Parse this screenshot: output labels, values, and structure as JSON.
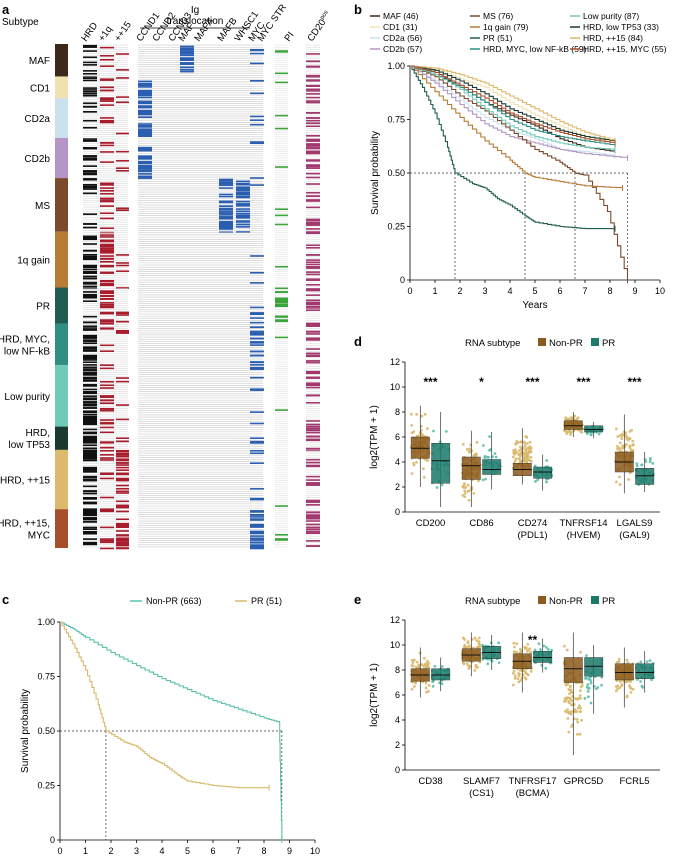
{
  "panel_labels": [
    "a",
    "b",
    "c",
    "d",
    "e"
  ],
  "colors": {
    "MAF": "#3d2718",
    "CD1": "#f3e2b1",
    "CD2a": "#c9e2ee",
    "CD2b": "#b595c7",
    "MS": "#7a4a2a",
    "1q gain": "#b97c35",
    "PR": "#1e5d50",
    "HRD, MYC, low NF-kB": "#2f8f83",
    "Low purity": "#6fcab8",
    "HRD, low TP53": "#1a3a30",
    "HRD, ++15": "#dcb96b",
    "HRD, ++15, MYC": "#a74e2a",
    "nonpr_dark": "#8b5a1c",
    "nonpr_light": "#d9b86a",
    "pr_dark": "#1b7a6a",
    "pr_light": "#5cc0ad",
    "ig": "#2a5eb0",
    "hrd": "#111111",
    "chr": "#a81c2c",
    "pi": "#3aa53a",
    "cd20": "#a3386f"
  },
  "panel_a": {
    "subtype_label": "Subtype",
    "column_labels": [
      "HRD",
      "+1q",
      "++15",
      "CCND1",
      "CCND2",
      "CCND3",
      "MAF",
      "MAFA",
      "MAFB",
      "WHSC1",
      "MYC",
      "MYC STR",
      "PI",
      "CD20"
    ],
    "cd20_sup": "pos",
    "ig_header": [
      "Ig",
      "translocation"
    ],
    "subtypes": [
      "MAF",
      "CD1",
      "CD2a",
      "CD2b",
      "MS",
      "1q gain",
      "PR",
      "HRD, MYC, low NF-kB",
      "Low purity",
      "HRD, low TP53",
      "HRD, ++15",
      "HRD, ++15, MYC"
    ],
    "subtype_display": [
      [
        "MAF"
      ],
      [
        "CD1"
      ],
      [
        "CD2a"
      ],
      [
        "CD2b"
      ],
      [
        "MS"
      ],
      [
        "1q gain"
      ],
      [
        "PR"
      ],
      [
        "HRD, MYC,",
        "low NF-kB"
      ],
      [
        "Low purity"
      ],
      [
        "HRD,",
        "low TP53"
      ],
      [
        "HRD, ++15"
      ],
      [
        "HRD, ++15,",
        "MYC"
      ]
    ],
    "subtype_sizes": [
      46,
      31,
      56,
      57,
      76,
      79,
      51,
      59,
      87,
      33,
      84,
      55
    ]
  },
  "chart_data": [
    {
      "panel": "b",
      "type": "line",
      "title": "",
      "xlabel": "Years",
      "ylabel": "Survival probability",
      "xlim": [
        0,
        10
      ],
      "ylim": [
        0,
        1
      ],
      "xticks": [
        0,
        1,
        2,
        3,
        4,
        5,
        6,
        7,
        8,
        9,
        10
      ],
      "yticks": [
        0,
        0.25,
        0.5,
        0.75,
        1
      ],
      "ytick_labels": [
        "0",
        "0.25",
        "0.50",
        "0.75",
        "1.00"
      ],
      "median_lines": [
        1.8,
        4.6,
        6.6,
        8.7
      ],
      "series": [
        {
          "name": "MAF (46)",
          "key": "MAF",
          "x": [
            0,
            1,
            2,
            3,
            4,
            5,
            6,
            7,
            8.2
          ],
          "y": [
            1,
            0.96,
            0.9,
            0.83,
            0.77,
            0.72,
            0.66,
            0.62,
            0.6
          ]
        },
        {
          "name": "CD1 (31)",
          "key": "CD1",
          "x": [
            0,
            1,
            2,
            3,
            4,
            5,
            6,
            7,
            8.2
          ],
          "y": [
            1,
            0.99,
            0.94,
            0.9,
            0.83,
            0.77,
            0.72,
            0.67,
            0.64
          ]
        },
        {
          "name": "CD2a (56)",
          "key": "CD2a",
          "x": [
            0,
            1,
            2,
            3,
            4,
            5,
            6,
            7,
            8.2
          ],
          "y": [
            1,
            0.93,
            0.84,
            0.76,
            0.7,
            0.66,
            0.61,
            0.6,
            0.58
          ]
        },
        {
          "name": "CD2b (57)",
          "key": "CD2b",
          "x": [
            0,
            1,
            2,
            3,
            4,
            5,
            6,
            7,
            8.7
          ],
          "y": [
            1,
            0.92,
            0.82,
            0.73,
            0.67,
            0.64,
            0.61,
            0.59,
            0.57
          ]
        },
        {
          "name": "MS (76)",
          "key": "MS",
          "x": [
            0,
            1,
            2,
            3,
            4,
            5,
            6,
            6.6,
            7,
            7.9,
            8.7
          ],
          "y": [
            1,
            0.95,
            0.86,
            0.79,
            0.7,
            0.61,
            0.55,
            0.5,
            0.49,
            0.32,
            0
          ]
        },
        {
          "name": "1q gain (79)",
          "key": "1q gain",
          "x": [
            0,
            1,
            2,
            3,
            4,
            4.6,
            5,
            6,
            7,
            8.5
          ],
          "y": [
            1,
            0.88,
            0.76,
            0.65,
            0.56,
            0.5,
            0.48,
            0.46,
            0.44,
            0.43
          ]
        },
        {
          "name": "PR (51)",
          "key": "PR",
          "x": [
            0,
            0.5,
            1,
            1.5,
            1.8,
            2.5,
            3,
            3.5,
            4,
            4.6,
            5,
            6,
            7,
            8.2
          ],
          "y": [
            1,
            0.9,
            0.78,
            0.62,
            0.5,
            0.45,
            0.43,
            0.38,
            0.35,
            0.3,
            0.27,
            0.25,
            0.24,
            0.24
          ]
        },
        {
          "name": "HRD, MYC, low NF-kB (59)",
          "key": "HRD, MYC, low NF-kB",
          "x": [
            0,
            1,
            2,
            3,
            4,
            5,
            6,
            7,
            8.2
          ],
          "y": [
            1,
            0.97,
            0.9,
            0.83,
            0.75,
            0.7,
            0.67,
            0.65,
            0.63
          ]
        },
        {
          "name": "Low purity (87)",
          "key": "Low purity",
          "x": [
            0,
            1,
            2,
            3,
            4,
            5,
            6,
            7,
            8.2
          ],
          "y": [
            1,
            0.96,
            0.89,
            0.8,
            0.72,
            0.67,
            0.64,
            0.62,
            0.61
          ]
        },
        {
          "name": "HRD, low TP53 (33)",
          "key": "HRD, low TP53",
          "x": [
            0,
            1,
            2,
            3,
            4,
            5,
            6,
            7,
            8.2
          ],
          "y": [
            1,
            0.98,
            0.93,
            0.87,
            0.8,
            0.75,
            0.7,
            0.67,
            0.65
          ]
        },
        {
          "name": "HRD, ++15 (84)",
          "key": "HRD, ++15",
          "x": [
            0,
            1,
            2,
            3,
            4,
            5,
            6,
            7,
            8.2
          ],
          "y": [
            1,
            0.99,
            0.96,
            0.92,
            0.86,
            0.8,
            0.74,
            0.69,
            0.65
          ]
        },
        {
          "name": "HRD, ++15, MYC (55)",
          "key": "HRD, ++15, MYC",
          "x": [
            0,
            1,
            2,
            3,
            4,
            5,
            6,
            7,
            8.2
          ],
          "y": [
            1,
            0.97,
            0.91,
            0.85,
            0.78,
            0.73,
            0.69,
            0.66,
            0.64
          ]
        }
      ]
    },
    {
      "panel": "c",
      "type": "line",
      "title": "",
      "xlabel": "Years",
      "ylabel": "Survival probability",
      "xlim": [
        0,
        10
      ],
      "ylim": [
        0,
        1
      ],
      "xticks": [
        0,
        1,
        2,
        3,
        4,
        5,
        6,
        7,
        8,
        9,
        10
      ],
      "yticks": [
        0,
        0.25,
        0.5,
        0.75,
        1
      ],
      "ytick_labels": [
        "0",
        "0.25",
        "0.50",
        "0.75",
        "1.00"
      ],
      "median_lines": [
        1.8,
        8.7
      ],
      "series": [
        {
          "name": "Non-PR (663)",
          "key": "pr_light",
          "x": [
            0,
            0.5,
            1,
            2,
            3,
            4,
            5,
            6,
            7,
            8,
            8.6,
            8.7
          ],
          "y": [
            1,
            0.97,
            0.93,
            0.86,
            0.8,
            0.74,
            0.69,
            0.64,
            0.6,
            0.56,
            0.54,
            0
          ]
        },
        {
          "name": "PR (51)",
          "key": "nonpr_light",
          "x": [
            0,
            0.5,
            1,
            1.5,
            1.8,
            2.5,
            3,
            3.5,
            4,
            4.6,
            5,
            6,
            7,
            8.2
          ],
          "y": [
            1,
            0.9,
            0.78,
            0.62,
            0.5,
            0.45,
            0.43,
            0.38,
            0.35,
            0.3,
            0.27,
            0.25,
            0.24,
            0.24
          ]
        }
      ]
    },
    {
      "panel": "d",
      "type": "box",
      "legend_title": "RNA subtype",
      "legend": [
        "Non-PR",
        "PR"
      ],
      "ylabel": "log2(TPM + 1)",
      "ylim": [
        0,
        12
      ],
      "yticks": [
        0,
        2,
        4,
        6,
        8,
        10,
        12
      ],
      "categories": [
        [
          "CD200"
        ],
        [
          "CD86"
        ],
        [
          "CD274",
          "(PDL1)"
        ],
        [
          "TNFRSF14",
          "(HVEM)"
        ],
        [
          "LGALS9",
          "(GAL9)"
        ]
      ],
      "significance": [
        "***",
        "*",
        "***",
        "***",
        "***"
      ],
      "series": [
        {
          "name": "Non-PR",
          "q1": [
            4.3,
            2.6,
            2.9,
            6.6,
            3.2
          ],
          "median": [
            5.1,
            3.7,
            3.4,
            6.9,
            4.0
          ],
          "q3": [
            6.0,
            4.4,
            3.9,
            7.3,
            4.8
          ],
          "wlo": [
            2.0,
            0.4,
            2.2,
            6.0,
            1.5
          ],
          "whi": [
            8.5,
            6.5,
            6.7,
            8.0,
            7.8
          ]
        },
        {
          "name": "PR",
          "q1": [
            2.3,
            3.0,
            2.7,
            6.4,
            2.2
          ],
          "median": [
            4.1,
            3.4,
            3.2,
            6.6,
            2.9
          ],
          "q3": [
            5.5,
            4.2,
            3.6,
            6.9,
            3.5
          ],
          "wlo": [
            0.4,
            1.8,
            1.7,
            5.9,
            1.6
          ],
          "whi": [
            8.0,
            6.4,
            4.6,
            7.2,
            4.8
          ]
        }
      ]
    },
    {
      "panel": "e",
      "type": "box",
      "legend_title": "RNA subtype",
      "legend": [
        "Non-PR",
        "PR"
      ],
      "ylabel": "log2(TPM + 1)",
      "ylim": [
        0,
        12
      ],
      "yticks": [
        0,
        2,
        4,
        6,
        8,
        10,
        12
      ],
      "categories": [
        [
          "CD38"
        ],
        [
          "SLAMF7",
          "(CS1)"
        ],
        [
          "TNFRSF17",
          "(BCMA)"
        ],
        [
          "GPRC5D"
        ],
        [
          "FCRL5"
        ]
      ],
      "significance": [
        "",
        "",
        "**",
        "",
        ""
      ],
      "series": [
        {
          "name": "Non-PR",
          "q1": [
            7.1,
            8.7,
            8.1,
            7.0,
            7.2
          ],
          "median": [
            7.6,
            9.2,
            8.7,
            8.1,
            7.8
          ],
          "q3": [
            8.1,
            9.7,
            9.3,
            9.0,
            8.5
          ],
          "wlo": [
            5.8,
            7.5,
            6.2,
            1.2,
            5.0
          ],
          "whi": [
            9.8,
            11.0,
            11.0,
            11.0,
            9.8
          ]
        },
        {
          "name": "PR",
          "q1": [
            7.2,
            8.9,
            8.6,
            7.5,
            7.3
          ],
          "median": [
            7.6,
            9.4,
            9.0,
            8.3,
            7.8
          ],
          "q3": [
            8.1,
            9.9,
            9.5,
            9.0,
            8.5
          ],
          "wlo": [
            6.3,
            8.0,
            7.8,
            4.5,
            6.2
          ],
          "whi": [
            9.0,
            10.8,
            10.5,
            10.0,
            9.5
          ]
        }
      ]
    }
  ]
}
